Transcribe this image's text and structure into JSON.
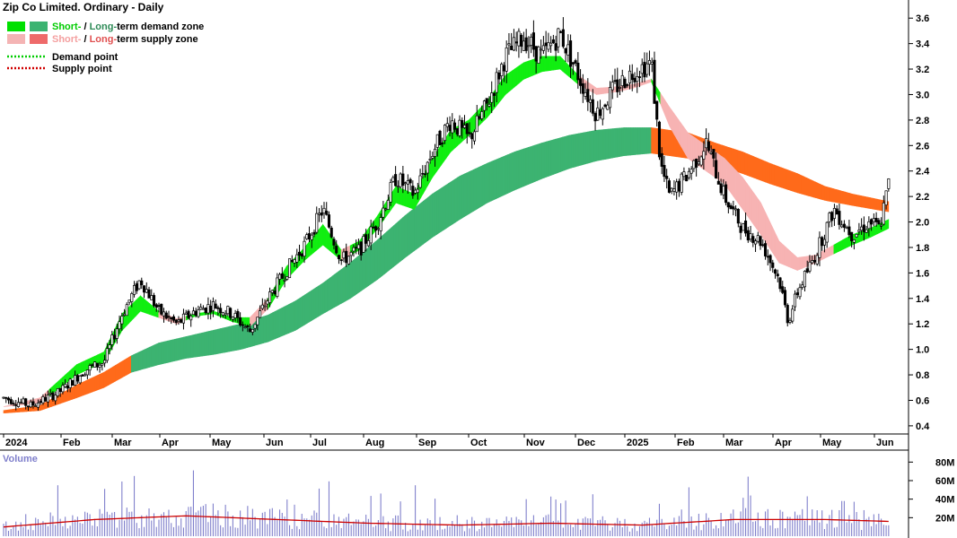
{
  "chart_data": {
    "type": "candlestick",
    "title": "Zip Co Limited. Ordinary - Daily",
    "price_axis": {
      "ticks": [
        "3.6",
        "3.4",
        "3.2",
        "3.0",
        "2.8",
        "2.6",
        "2.4",
        "2.2",
        "2.0",
        "1.8",
        "1.6",
        "1.4",
        "1.2",
        "1.0",
        "0.8",
        "0.6",
        "0.4"
      ],
      "ylim": [
        0.35,
        3.7
      ]
    },
    "time_axis": {
      "labels": [
        "2024",
        "Feb",
        "Mar",
        "Apr",
        "May",
        "Jun",
        "Jul",
        "Aug",
        "Sep",
        "Oct",
        "Nov",
        "Dec",
        "2025",
        "Feb",
        "Mar",
        "Apr",
        "May",
        "Jun"
      ],
      "bold": [
        "2024",
        "2025"
      ]
    },
    "legend": [
      {
        "short": "Short-",
        "sep": " / ",
        "long": "Long-",
        "rest": "term demand zone",
        "short_color": "#00e000",
        "long_color": "#3cb371",
        "text_short_color": "#00cc00",
        "text_long_color": "#2e8b57"
      },
      {
        "short": "Short-",
        "sep": " / ",
        "long": "Long-",
        "rest": "term supply zone",
        "short_color": "#f4b4b4",
        "long_color": "#ee6a6a",
        "text_short_color": "#f4a0a0",
        "text_long_color": "#e05050"
      },
      {
        "label": "Demand point",
        "line_color": "#00cc00"
      },
      {
        "label": "Supply point",
        "line_color": "#d00000"
      }
    ],
    "price_path": {
      "anchors": [
        [
          0,
          0.62
        ],
        [
          3,
          0.56
        ],
        [
          6,
          0.66
        ],
        [
          9,
          0.84
        ],
        [
          11,
          0.9
        ],
        [
          13,
          1.28
        ],
        [
          15,
          1.55
        ],
        [
          17,
          1.3
        ],
        [
          19,
          1.2
        ],
        [
          21,
          1.3
        ],
        [
          23,
          1.35
        ],
        [
          25,
          1.28
        ],
        [
          27,
          1.14
        ],
        [
          29,
          1.4
        ],
        [
          31,
          1.62
        ],
        [
          33,
          1.82
        ],
        [
          35,
          2.1
        ],
        [
          37,
          1.7
        ],
        [
          39,
          1.78
        ],
        [
          41,
          2.0
        ],
        [
          43,
          2.35
        ],
        [
          45,
          2.22
        ],
        [
          47,
          2.55
        ],
        [
          49,
          2.8
        ],
        [
          51,
          2.65
        ],
        [
          53,
          2.92
        ],
        [
          55,
          3.3
        ],
        [
          57,
          3.45
        ],
        [
          59,
          3.3
        ],
        [
          61,
          3.48
        ],
        [
          63,
          3.15
        ],
        [
          65,
          2.85
        ],
        [
          67,
          3.05
        ],
        [
          69,
          3.18
        ],
        [
          71,
          3.25
        ],
        [
          72,
          2.45
        ],
        [
          73,
          2.2
        ],
        [
          75,
          2.38
        ],
        [
          77,
          2.62
        ],
        [
          79,
          2.2
        ],
        [
          81,
          1.95
        ],
        [
          83,
          1.85
        ],
        [
          85,
          1.55
        ],
        [
          86,
          1.22
        ],
        [
          87,
          1.45
        ],
        [
          89,
          1.75
        ],
        [
          91,
          2.1
        ],
        [
          93,
          1.9
        ],
        [
          95,
          2.0
        ],
        [
          96,
          1.95
        ],
        [
          97,
          2.3
        ]
      ],
      "n_bars": 360
    },
    "zones": {
      "short_term": {
        "anchors": [
          [
            0,
            0.55,
            0.55
          ],
          [
            4,
            0.58,
            0.62
          ],
          [
            8,
            0.8,
            0.88
          ],
          [
            11,
            0.9,
            0.98
          ],
          [
            13,
            1.15,
            1.28
          ],
          [
            15,
            1.3,
            1.42
          ],
          [
            17,
            1.25,
            1.3
          ],
          [
            19,
            1.2,
            1.24
          ],
          [
            21,
            1.26,
            1.28
          ],
          [
            23,
            1.28,
            1.3
          ],
          [
            25,
            1.22,
            1.25
          ],
          [
            27,
            1.18,
            1.25
          ],
          [
            29,
            1.32,
            1.4
          ],
          [
            31,
            1.55,
            1.65
          ],
          [
            33,
            1.7,
            1.8
          ],
          [
            35,
            1.82,
            1.98
          ],
          [
            37,
            1.7,
            1.78
          ],
          [
            39,
            1.78,
            1.85
          ],
          [
            41,
            1.95,
            2.05
          ],
          [
            43,
            2.15,
            2.28
          ],
          [
            45,
            2.1,
            2.22
          ],
          [
            47,
            2.35,
            2.5
          ],
          [
            49,
            2.55,
            2.72
          ],
          [
            51,
            2.68,
            2.8
          ],
          [
            53,
            2.82,
            2.95
          ],
          [
            55,
            3.0,
            3.15
          ],
          [
            57,
            3.12,
            3.25
          ],
          [
            59,
            3.18,
            3.3
          ],
          [
            61,
            3.2,
            3.3
          ],
          [
            63,
            3.08,
            3.15
          ],
          [
            65,
            3.0,
            3.05
          ],
          [
            67,
            3.02,
            3.06
          ],
          [
            69,
            3.05,
            3.08
          ],
          [
            71,
            3.1,
            3.12
          ],
          [
            73,
            2.75,
            2.9
          ],
          [
            75,
            2.5,
            2.7
          ],
          [
            77,
            2.4,
            2.6
          ],
          [
            79,
            2.3,
            2.5
          ],
          [
            81,
            2.1,
            2.35
          ],
          [
            83,
            1.9,
            2.15
          ],
          [
            85,
            1.68,
            1.85
          ],
          [
            87,
            1.62,
            1.72
          ],
          [
            89,
            1.68,
            1.74
          ],
          [
            91,
            1.75,
            1.82
          ],
          [
            93,
            1.82,
            1.9
          ],
          [
            95,
            1.88,
            1.95
          ],
          [
            97,
            1.95,
            2.02
          ]
        ],
        "states": [
          [
            0,
            "supply"
          ],
          [
            5,
            "demand"
          ],
          [
            17,
            "supply"
          ],
          [
            20,
            "demand"
          ],
          [
            27,
            "supply"
          ],
          [
            29,
            "demand"
          ],
          [
            37,
            "supply"
          ],
          [
            38,
            "demand"
          ],
          [
            63,
            "supply"
          ],
          [
            71,
            "demand"
          ],
          [
            72,
            "supply"
          ],
          [
            91,
            "demand"
          ]
        ]
      },
      "long_term": {
        "anchors": [
          [
            0,
            0.5,
            0.52
          ],
          [
            4,
            0.52,
            0.56
          ],
          [
            8,
            0.62,
            0.72
          ],
          [
            11,
            0.7,
            0.82
          ],
          [
            14,
            0.82,
            0.95
          ],
          [
            17,
            0.88,
            1.05
          ],
          [
            20,
            0.93,
            1.1
          ],
          [
            23,
            0.96,
            1.15
          ],
          [
            26,
            1.0,
            1.2
          ],
          [
            29,
            1.06,
            1.27
          ],
          [
            32,
            1.15,
            1.38
          ],
          [
            35,
            1.28,
            1.52
          ],
          [
            38,
            1.4,
            1.68
          ],
          [
            41,
            1.55,
            1.86
          ],
          [
            44,
            1.72,
            2.05
          ],
          [
            47,
            1.88,
            2.22
          ],
          [
            50,
            2.02,
            2.36
          ],
          [
            53,
            2.15,
            2.46
          ],
          [
            56,
            2.25,
            2.55
          ],
          [
            59,
            2.34,
            2.62
          ],
          [
            62,
            2.42,
            2.68
          ],
          [
            65,
            2.48,
            2.72
          ],
          [
            68,
            2.52,
            2.74
          ],
          [
            71,
            2.54,
            2.74
          ],
          [
            73,
            2.52,
            2.72
          ],
          [
            75,
            2.5,
            2.7
          ],
          [
            78,
            2.45,
            2.62
          ],
          [
            81,
            2.38,
            2.55
          ],
          [
            84,
            2.3,
            2.46
          ],
          [
            87,
            2.23,
            2.38
          ],
          [
            90,
            2.17,
            2.28
          ],
          [
            93,
            2.13,
            2.22
          ],
          [
            97,
            2.08,
            2.16
          ]
        ],
        "states": [
          [
            0,
            "supply"
          ],
          [
            14,
            "demand"
          ],
          [
            71,
            "supply"
          ]
        ]
      }
    },
    "volume": {
      "title": "Volume",
      "ticks": [
        "80M",
        "60M",
        "40M",
        "20M"
      ],
      "ylim": [
        0,
        90
      ],
      "average_line_color": "#cc0000",
      "bar_color": "#8080cc",
      "peaks": [
        [
          6,
          55
        ],
        [
          16,
          30
        ],
        [
          32,
          34
        ],
        [
          45,
          55
        ],
        [
          72,
          35
        ],
        [
          92,
          38
        ]
      ],
      "average": [
        [
          0,
          10
        ],
        [
          10,
          18
        ],
        [
          20,
          22
        ],
        [
          30,
          18
        ],
        [
          40,
          14
        ],
        [
          50,
          12
        ],
        [
          60,
          14
        ],
        [
          70,
          12
        ],
        [
          75,
          15
        ],
        [
          80,
          18
        ],
        [
          90,
          18
        ],
        [
          97,
          16
        ]
      ]
    }
  }
}
